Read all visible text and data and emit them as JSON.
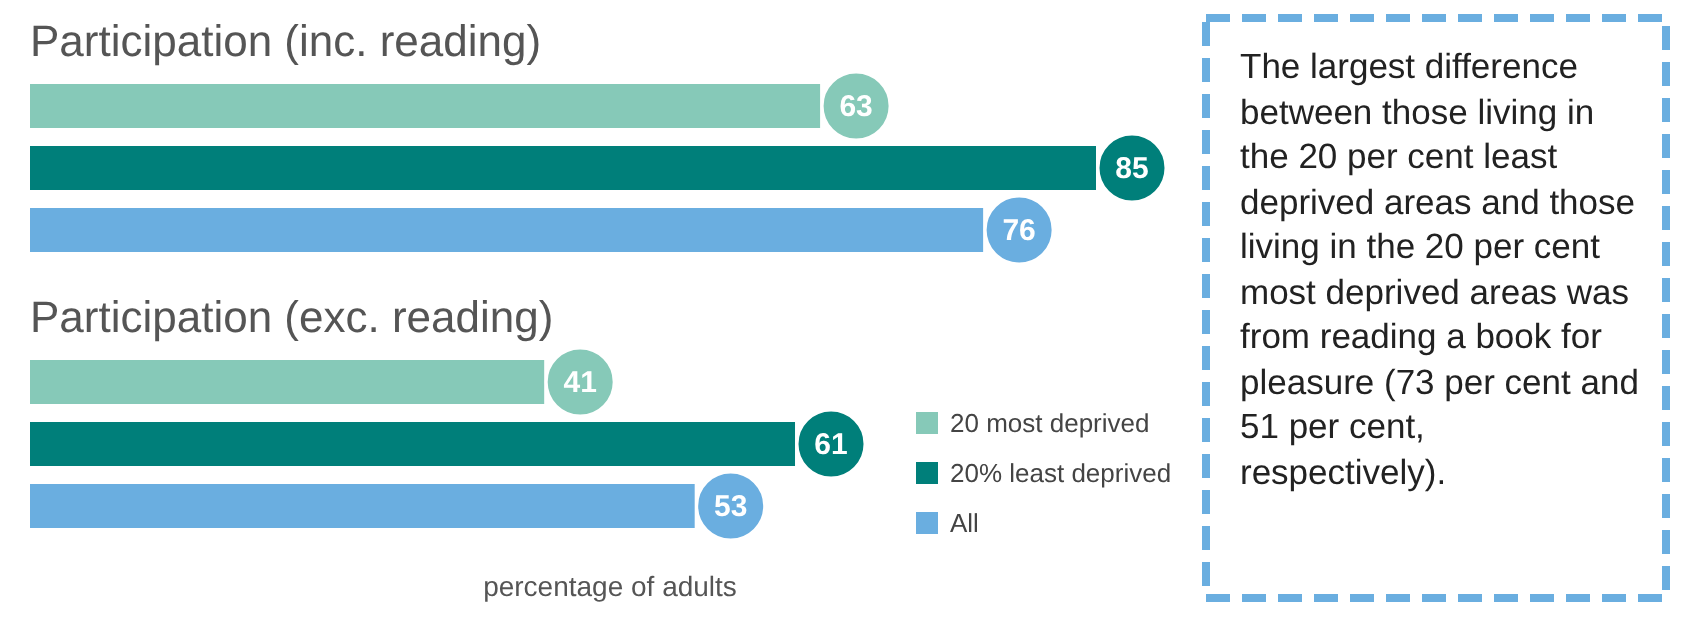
{
  "chart_data": {
    "type": "bar",
    "orientation": "horizontal",
    "categories": [
      "Participation (inc. reading)",
      "Participation (exc. reading)"
    ],
    "series": [
      {
        "name": "20 most deprived",
        "color": "#86c9b8",
        "values": [
          63,
          41
        ]
      },
      {
        "name": "20% least deprived",
        "color": "#007f7a",
        "values": [
          85,
          61
        ]
      },
      {
        "name": "All",
        "color": "#6aaee0",
        "values": [
          76,
          53
        ]
      }
    ],
    "xlabel": "percentage of adults",
    "data_labels": true,
    "legend": "bottom right",
    "annotations": [
      "The largest difference between those living in the 20 per cent least deprived areas and those living in the 20 per cent most deprived areas was from reading a book for pleasure (73 per cent and 51 per cent, respectively)."
    ]
  }
}
